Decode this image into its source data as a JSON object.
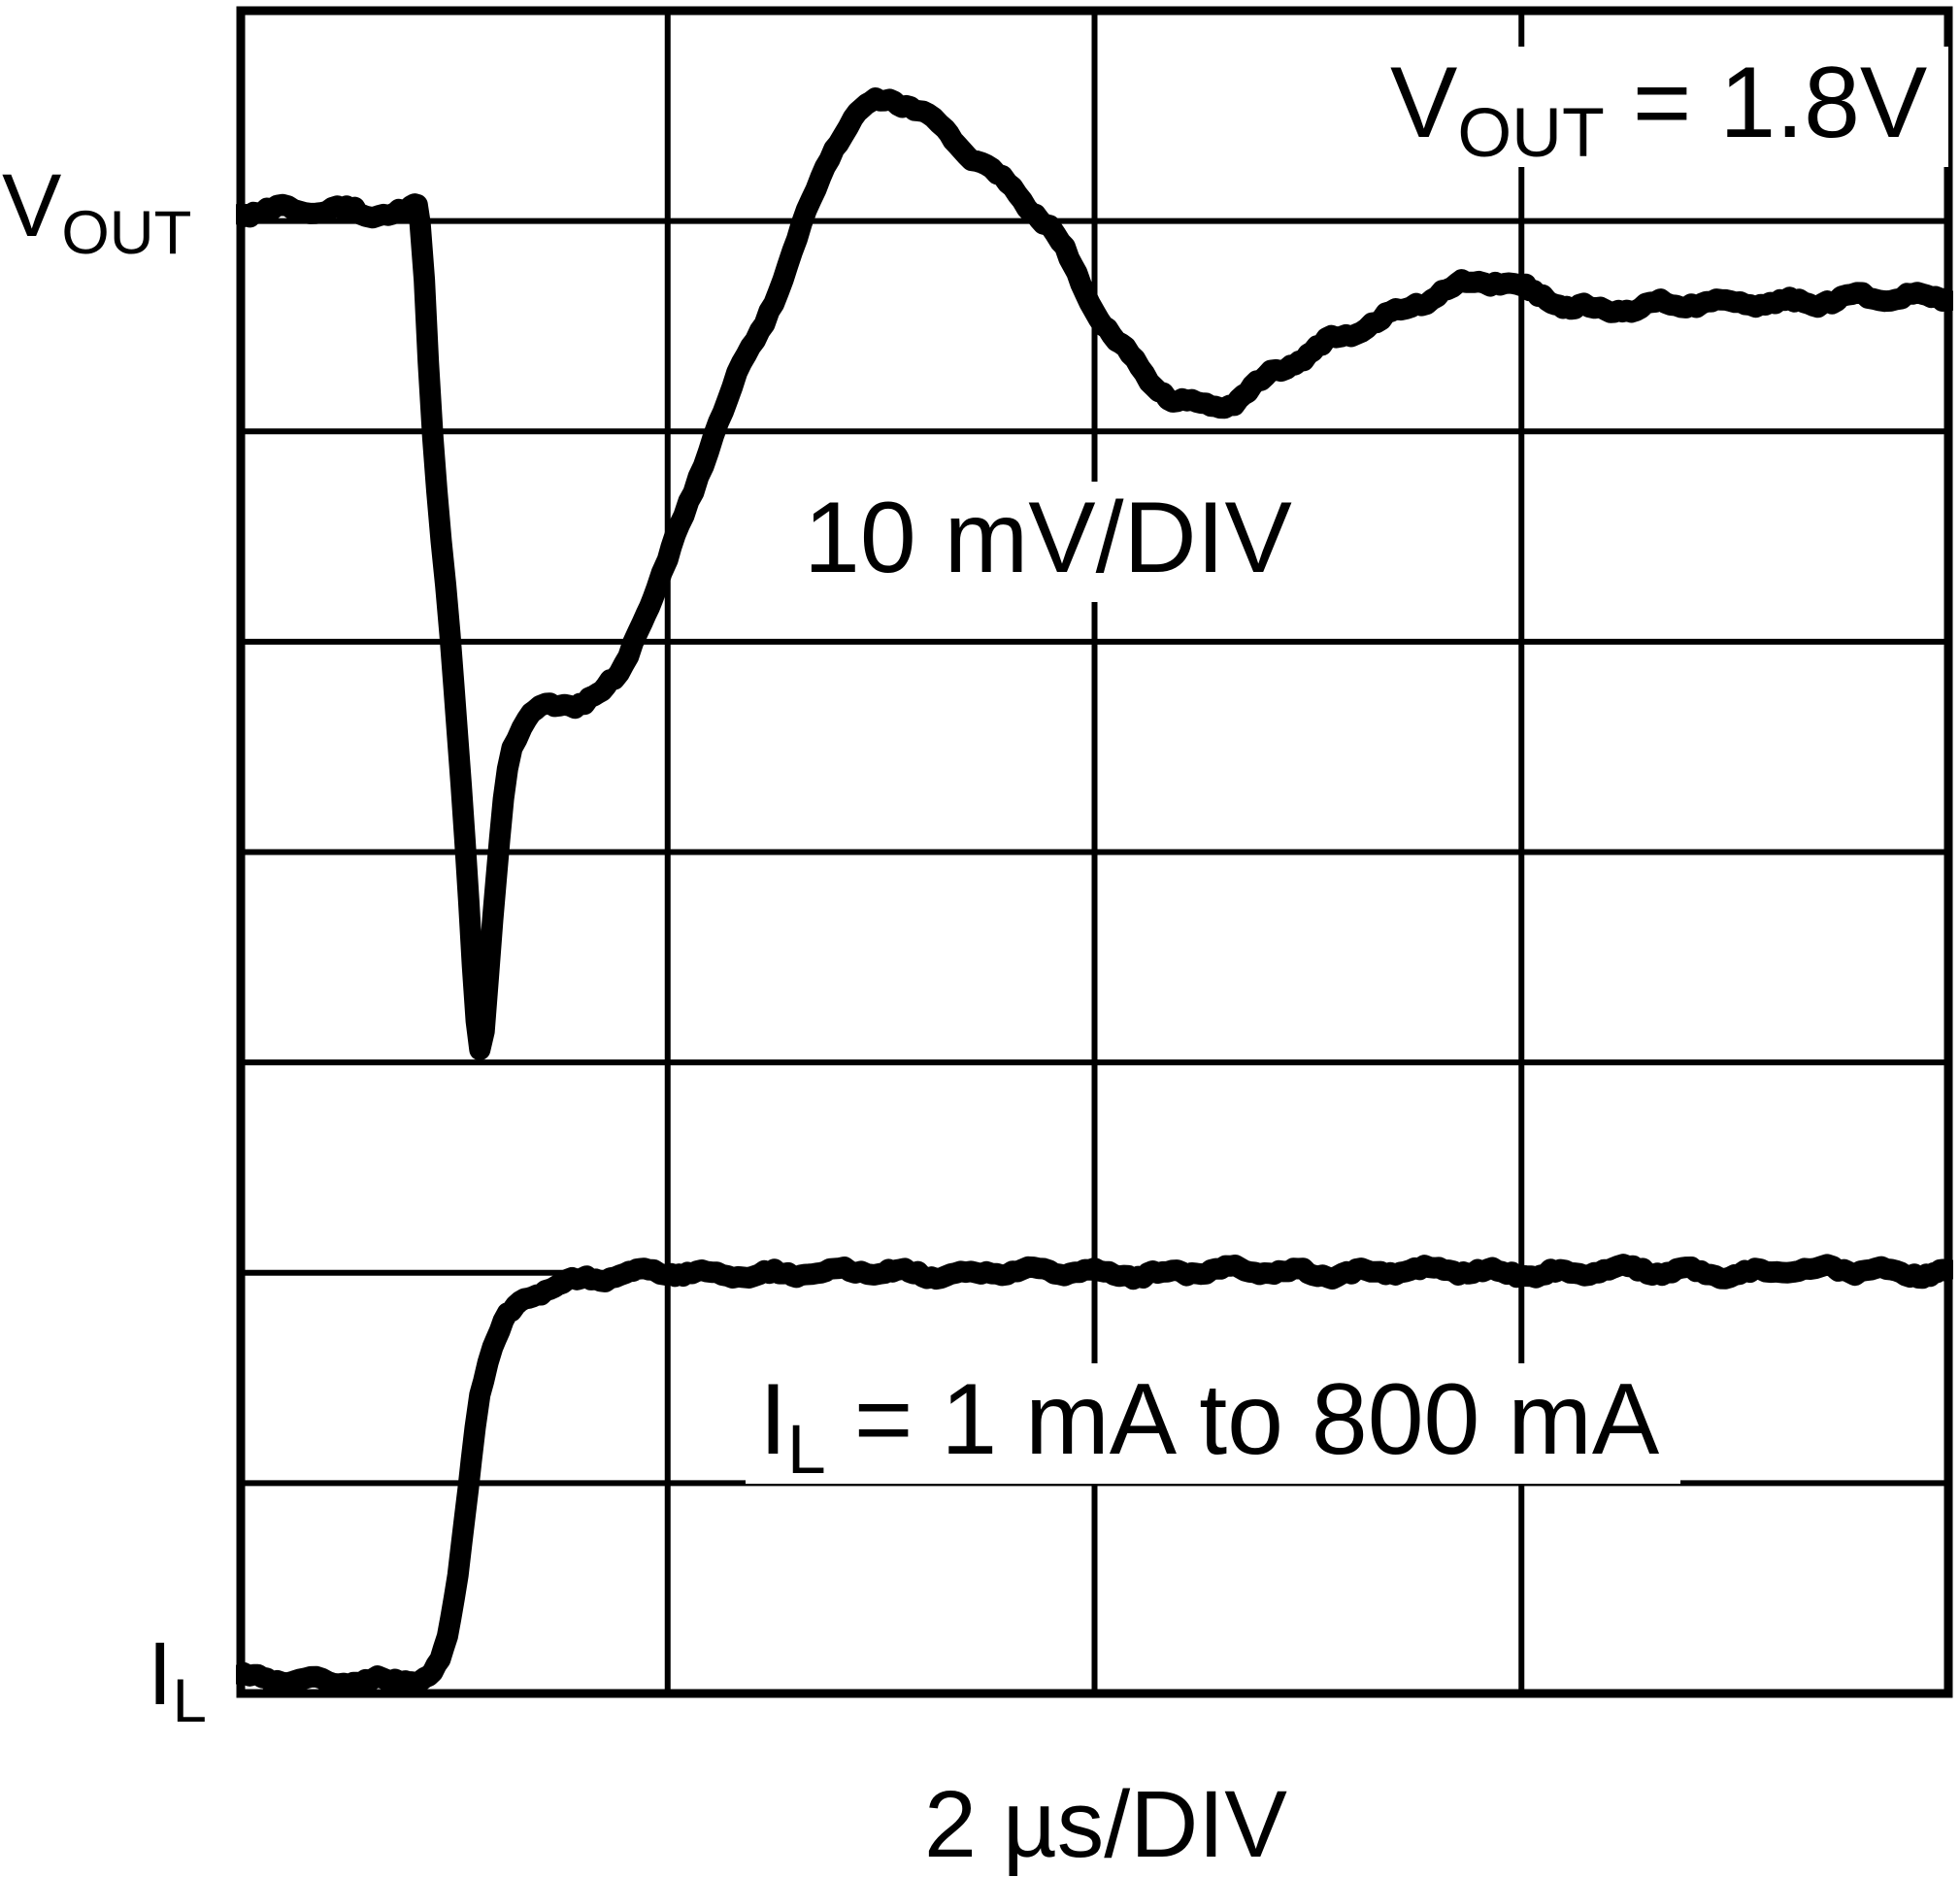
{
  "figure": {
    "kind": "oscilloscope-load-transient-figure",
    "background_color": "#ffffff",
    "foreground_color": "#000000"
  },
  "labels": {
    "vout_left": {
      "pre": "V",
      "sub": "OUT"
    },
    "il_left": {
      "pre": "I",
      "sub": "L"
    },
    "vout_value": {
      "pre": "V",
      "sub": "OUT",
      "post": " = 1.8V"
    },
    "vout_scale": "10 mV/DIV",
    "il_step": {
      "pre": "I",
      "sub": "L",
      "post": " = 1 mA to 800 mA"
    },
    "time_scale": "2 µs/DIV"
  },
  "chart_data": {
    "type": "line",
    "title": "",
    "xlabel": "2 µs/DIV",
    "ylabel": "",
    "x_units": "µs",
    "x_per_div": 2,
    "x_divisions": 4,
    "x_range": [
      0,
      8
    ],
    "y_divisions": 8,
    "grid": true,
    "legend_position": "none",
    "annotations": [
      {
        "text": "VOUT = 1.8V",
        "position": "top-right-inside"
      },
      {
        "text": "10 mV/DIV",
        "position": "center-inside"
      },
      {
        "text": "IL = 1 mA to 800 mA",
        "position": "lower-center-inside"
      },
      {
        "text": "2 µs/DIV",
        "position": "below-axis"
      },
      {
        "text": "VOUT",
        "position": "left-outside-top-trace"
      },
      {
        "text": "IL",
        "position": "left-outside-bottom-trace"
      }
    ],
    "series": [
      {
        "name": "VOUT",
        "units": "mV deviation from 1.8V",
        "vertical_scale": "10 mV/DIV",
        "description": "Output voltage transient: dip of about -40 mV at load step, recovery overshoot of about +5 mV, settles about -4 mV below initial level",
        "t_us": [
          0,
          0.55,
          0.77,
          0.84,
          0.9,
          0.98,
          1.05,
          1.12,
          1.18,
          1.25,
          1.34,
          1.43,
          1.61,
          1.75,
          1.88,
          2.0,
          2.26,
          2.52,
          2.8,
          3.04,
          3.3,
          3.76,
          4.0,
          4.3,
          4.61,
          4.9,
          5.3,
          5.8,
          6.1,
          6.4,
          7.0,
          7.5,
          8.0
        ],
        "values_mv": [
          0,
          0,
          0,
          -0.5,
          -10.7,
          -20,
          -30,
          -40.2,
          -33.7,
          -26.4,
          -24.3,
          -23.6,
          -23.1,
          -22.2,
          -19.4,
          -16.7,
          -9.5,
          -3.5,
          3.5,
          5.2,
          3.8,
          -0.4,
          -4.7,
          -8.3,
          -9.1,
          -7.4,
          -5.2,
          -3.4,
          -4.0,
          -4.6,
          -4.3,
          -4.2,
          -4.0
        ]
      },
      {
        "name": "IL",
        "units": "mA",
        "step": "1 mA to 800 mA",
        "description": "Load current step from 1 mA to 800 mA",
        "t_us": [
          0,
          0.6,
          0.8,
          0.88,
          0.95,
          1.0,
          1.05,
          1.08,
          1.12,
          1.18,
          1.25,
          1.35,
          1.45,
          1.6,
          1.8,
          2.0,
          2.5,
          3.0,
          4.0,
          5.0,
          6.0,
          7.0,
          8.0
        ],
        "values_ma": [
          1,
          1,
          1,
          5,
          50,
          150,
          320,
          430,
          560,
          650,
          710,
          755,
          775,
          786,
          793,
          797,
          798,
          799,
          799.5,
          800,
          800.5,
          801,
          802
        ]
      }
    ]
  }
}
